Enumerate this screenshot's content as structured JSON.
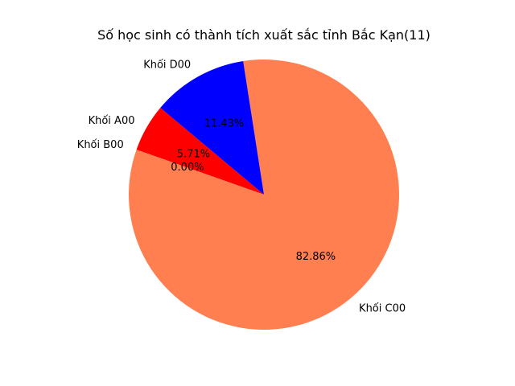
{
  "chart_data": {
    "type": "pie",
    "title": "Số học sinh có thành tích xuất sắc tỉnh Bắc Kạn(11)",
    "slices": [
      {
        "label": "Khối A00",
        "percent": 5.71,
        "percent_label": "5.71%",
        "color": "#ff0000"
      },
      {
        "label": "Khối B00",
        "percent": 0.0,
        "percent_label": "0.00%",
        "color": "#ffa500"
      },
      {
        "label": "Khối C00",
        "percent": 82.86,
        "percent_label": "82.86%",
        "color": "#ff7f50"
      },
      {
        "label": "Khối D00",
        "percent": 11.43,
        "percent_label": "11.43%",
        "color": "#0000ff"
      }
    ],
    "start_angle_deg": 140,
    "direction": "counterclockwise",
    "legend": "none"
  }
}
